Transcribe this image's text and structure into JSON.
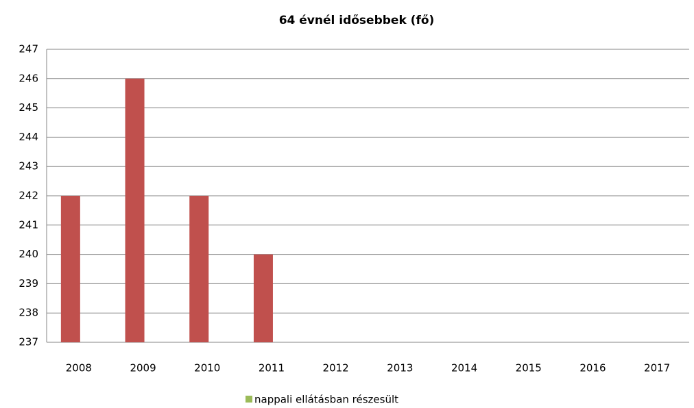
{
  "chart_data": {
    "type": "bar",
    "title": "64 évnél idősebbek (fő)",
    "categories": [
      "2008",
      "2009",
      "2010",
      "2011",
      "2012",
      "2013",
      "2014",
      "2015",
      "2016",
      "2017"
    ],
    "series": [
      {
        "name": "nappali ellátásban részesült",
        "color": "#c0504d",
        "legend_color": "#9bbb59",
        "values": [
          242,
          246,
          242,
          240,
          null,
          null,
          null,
          null,
          null,
          null
        ]
      }
    ],
    "ylim": [
      237,
      247
    ],
    "yticks": [
      237,
      238,
      239,
      240,
      241,
      242,
      243,
      244,
      245,
      246,
      247
    ],
    "grid": true,
    "legend": "bottom"
  }
}
